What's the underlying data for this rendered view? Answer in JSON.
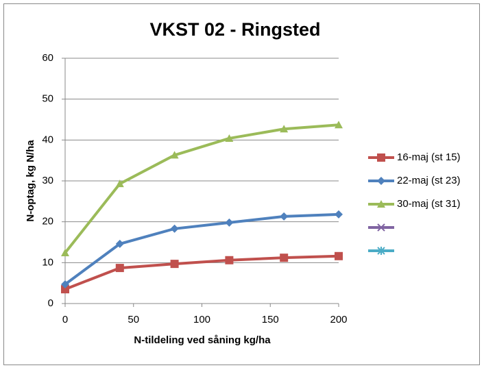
{
  "chart_data": {
    "type": "line",
    "title": "VKST 02 - Ringsted",
    "x_label": "N-tildeling ved såning kg/ha",
    "y_label": "N-optag, kg N/ha",
    "x": [
      0,
      40,
      80,
      120,
      160,
      200
    ],
    "xlim": [
      0,
      200
    ],
    "xticks": [
      0,
      50,
      100,
      150,
      200
    ],
    "ylim": [
      0,
      60
    ],
    "yticks": [
      0,
      10,
      20,
      30,
      40,
      50,
      60
    ],
    "grid": true,
    "legend": "right",
    "series": [
      {
        "name": "16-maj (st 15)",
        "color": "#c0504d",
        "marker": "square",
        "values": [
          3.5,
          8.7,
          9.7,
          10.6,
          11.2,
          11.6
        ]
      },
      {
        "name": "22-maj (st 23)",
        "color": "#4f81bd",
        "marker": "diamond",
        "values": [
          4.7,
          14.6,
          18.3,
          19.8,
          21.3,
          21.8
        ]
      },
      {
        "name": "30-maj (st 31)",
        "color": "#9bbb59",
        "marker": "triangle",
        "values": [
          12.4,
          29.3,
          36.3,
          40.4,
          42.7,
          43.7
        ]
      },
      {
        "color": "#8064a2",
        "marker": "x",
        "values": [
          null,
          null,
          null,
          null,
          null,
          null
        ]
      },
      {
        "color": "#4bacc6",
        "marker": "star",
        "values": [
          null,
          null,
          null,
          null,
          null,
          null
        ]
      }
    ]
  }
}
